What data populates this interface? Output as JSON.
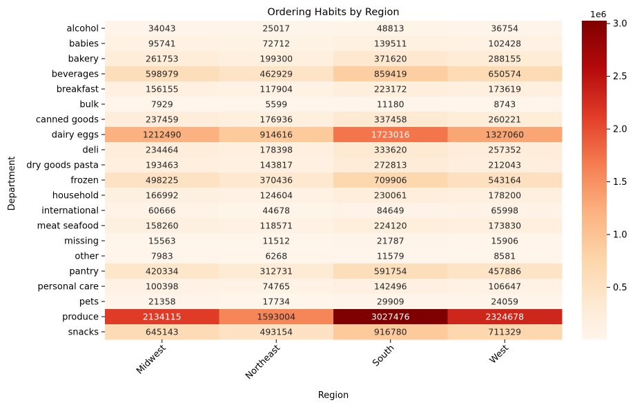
{
  "chart_data": {
    "type": "heatmap",
    "title": "Ordering Habits by Region",
    "xlabel": "Region",
    "ylabel": "Department",
    "x_categories": [
      "Midwest",
      "Northeast",
      "South",
      "West"
    ],
    "y_categories": [
      "alcohol",
      "babies",
      "bakery",
      "beverages",
      "breakfast",
      "bulk",
      "canned goods",
      "dairy eggs",
      "deli",
      "dry goods pasta",
      "frozen",
      "household",
      "international",
      "meat seafood",
      "missing",
      "other",
      "pantry",
      "personal care",
      "pets",
      "produce",
      "snacks"
    ],
    "values": [
      [
        34043,
        25017,
        48813,
        36754
      ],
      [
        95741,
        72712,
        139511,
        102428
      ],
      [
        261753,
        199300,
        371620,
        288155
      ],
      [
        598979,
        462929,
        859419,
        650574
      ],
      [
        156155,
        117904,
        223172,
        173619
      ],
      [
        7929,
        5599,
        11180,
        8743
      ],
      [
        237459,
        176936,
        337458,
        260221
      ],
      [
        1212490,
        914616,
        1723016,
        1327060
      ],
      [
        234464,
        178398,
        333620,
        257352
      ],
      [
        193463,
        143817,
        272813,
        212043
      ],
      [
        498225,
        370436,
        709906,
        543164
      ],
      [
        166992,
        124604,
        230061,
        178200
      ],
      [
        60666,
        44678,
        84649,
        65998
      ],
      [
        158260,
        118571,
        224120,
        173830
      ],
      [
        15563,
        11512,
        21787,
        15906
      ],
      [
        7983,
        6268,
        11579,
        8581
      ],
      [
        420334,
        312731,
        591754,
        457886
      ],
      [
        100398,
        74765,
        142496,
        106647
      ],
      [
        21358,
        17734,
        29909,
        24059
      ],
      [
        2134115,
        1593004,
        3027476,
        2324678
      ],
      [
        645143,
        493154,
        916780,
        711329
      ]
    ],
    "colormap": "OrRd-like (Reds)",
    "value_range": [
      5599,
      3027476
    ],
    "colorbar": {
      "ticks": [
        0.5,
        1.0,
        1.5,
        2.0,
        2.5,
        3.0
      ],
      "tick_labels": [
        "0.5",
        "1.0",
        "1.5",
        "2.0",
        "2.5",
        "3.0"
      ],
      "multiplier_label": "1e6"
    },
    "x_tick_rotation": "45 degrees",
    "grid": false,
    "legend": "colorbar at right"
  }
}
